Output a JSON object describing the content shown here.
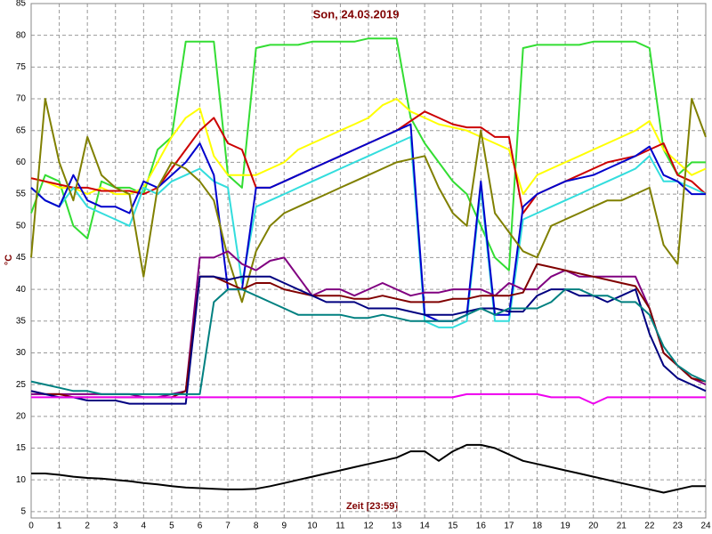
{
  "chart_data": {
    "type": "line",
    "title": "Son, 24.03.2019",
    "xlabel": "Zeit [23:59]",
    "ylabel": "°C",
    "x": [
      0,
      0.5,
      1,
      1.5,
      2,
      2.5,
      3,
      3.5,
      4,
      4.5,
      5,
      5.5,
      6,
      6.5,
      7,
      7.5,
      8,
      8.5,
      9,
      9.5,
      10,
      10.5,
      11,
      11.5,
      12,
      12.5,
      13,
      13.5,
      14,
      14.5,
      15,
      15.5,
      16,
      16.5,
      17,
      17.5,
      18,
      18.5,
      19,
      19.5,
      20,
      20.5,
      21,
      21.5,
      22,
      22.5,
      23,
      23.5,
      24
    ],
    "xlim": [
      0,
      24
    ],
    "xticks": [
      0,
      1,
      2,
      3,
      4,
      5,
      6,
      7,
      8,
      9,
      10,
      11,
      12,
      13,
      14,
      15,
      16,
      17,
      18,
      19,
      20,
      21,
      22,
      23,
      24
    ],
    "ylim": [
      4,
      85
    ],
    "yticks": [
      5,
      10,
      15,
      20,
      25,
      30,
      35,
      40,
      45,
      50,
      55,
      60,
      65,
      70,
      75,
      80,
      85
    ],
    "grid": true,
    "series": [
      {
        "color": "#33dd33",
        "values": [
          52,
          58,
          57,
          50,
          48,
          57,
          56,
          56,
          55,
          62,
          64,
          79,
          79,
          79,
          58,
          56,
          78,
          78.5,
          78.5,
          78.5,
          79,
          79,
          79,
          79,
          79.5,
          79.5,
          79.5,
          67,
          63,
          60,
          57,
          55,
          50,
          45,
          43,
          78,
          78.5,
          78.5,
          78.5,
          78.5,
          79,
          79,
          79,
          79,
          78,
          62,
          58,
          60,
          60
        ]
      },
      {
        "color": "#ffff00",
        "values": [
          57.5,
          57,
          56,
          56,
          55,
          56,
          55,
          55,
          56,
          60,
          64,
          67,
          68.5,
          61,
          58,
          58,
          58,
          59,
          60,
          62,
          63,
          64,
          65,
          66,
          67,
          69,
          70,
          68,
          67,
          66,
          65.5,
          65,
          64,
          63,
          62,
          55,
          58,
          59,
          60,
          61,
          62,
          63,
          64,
          65,
          66.5,
          62,
          60,
          58,
          59
        ]
      },
      {
        "color": "#cc0000",
        "values": [
          57.5,
          57,
          56.5,
          56,
          56,
          55.5,
          55.5,
          55.5,
          55,
          56,
          59,
          62,
          65,
          67,
          63,
          62,
          56,
          56,
          57,
          58,
          59,
          60,
          61,
          62,
          63,
          64,
          65,
          66.5,
          68,
          67,
          66,
          65.5,
          65.5,
          64,
          64,
          52,
          55,
          56,
          57,
          58,
          59,
          60,
          60.5,
          61,
          62,
          63,
          58,
          57,
          55
        ]
      },
      {
        "color": "#33dddd",
        "values": [
          56,
          54,
          53,
          56,
          53,
          52,
          51,
          50,
          56,
          55,
          57,
          58,
          59,
          57,
          56,
          41,
          53,
          54,
          55,
          56,
          57,
          58,
          59,
          60,
          61,
          62,
          63,
          64,
          35,
          34,
          34,
          35,
          56,
          35,
          35,
          51,
          52,
          53,
          54,
          55,
          56,
          57,
          58,
          59,
          61,
          57,
          57,
          56,
          55
        ]
      },
      {
        "color": "#0000cc",
        "values": [
          56,
          54,
          53,
          58,
          54,
          53,
          53,
          52,
          57,
          56,
          58,
          60,
          63,
          58,
          40,
          40,
          56,
          56,
          57,
          58,
          59,
          60,
          61,
          62,
          63,
          64,
          65,
          66,
          36,
          35,
          35,
          36,
          57,
          36,
          36,
          53,
          55,
          56,
          57,
          57.5,
          58,
          59,
          60,
          61,
          62.5,
          58,
          57,
          55,
          55
        ]
      },
      {
        "color": "#808000",
        "values": [
          45,
          70,
          60,
          54,
          64,
          58,
          56,
          55,
          42,
          56,
          60,
          59,
          57,
          54,
          45,
          38,
          46,
          50,
          52,
          53,
          54,
          55,
          56,
          57,
          58,
          59,
          60,
          60.5,
          61,
          56,
          52,
          50,
          65,
          52,
          49,
          46,
          45,
          50,
          51,
          52,
          53,
          54,
          54,
          55,
          56,
          47,
          44,
          70,
          64
        ]
      },
      {
        "color": "#800080",
        "values": [
          23.5,
          23.5,
          23.5,
          23.5,
          23.5,
          23.5,
          23.5,
          23.5,
          23,
          23,
          23.5,
          24,
          45,
          45,
          46,
          44,
          43,
          44.5,
          45,
          42,
          39,
          40,
          40,
          39,
          40,
          41,
          40,
          39,
          39.5,
          39.5,
          40,
          40,
          40,
          39,
          41,
          40,
          40,
          42,
          43,
          42,
          42,
          42,
          42,
          42,
          37,
          30,
          28,
          26,
          25
        ]
      },
      {
        "color": "#800000",
        "values": [
          24,
          23.5,
          23.5,
          23,
          23,
          23,
          23,
          23,
          23,
          23,
          23,
          24,
          42,
          42,
          41,
          40,
          41,
          41,
          40,
          39.5,
          39,
          39,
          39,
          38.5,
          38.5,
          39,
          38.5,
          38,
          38,
          38,
          38.5,
          38.5,
          39,
          39,
          39,
          39.5,
          44,
          43.5,
          43,
          42.5,
          42,
          41.5,
          41,
          40.5,
          37,
          30,
          28,
          26,
          25.5
        ]
      },
      {
        "color": "#000080",
        "values": [
          24,
          23.5,
          23,
          23,
          22.5,
          22.5,
          22.5,
          22,
          22,
          22,
          22,
          22,
          42,
          42,
          41.5,
          42,
          42,
          42,
          41,
          40,
          39,
          38,
          38,
          38,
          37,
          37,
          37,
          36.5,
          36,
          36,
          36,
          36.5,
          37,
          37,
          36.5,
          36.5,
          39,
          40,
          40,
          39,
          39,
          38,
          39,
          40,
          33,
          28,
          26,
          25,
          24
        ]
      },
      {
        "color": "#008080",
        "values": [
          25.5,
          25,
          24.5,
          24,
          24,
          23.5,
          23.5,
          23.5,
          23.5,
          23.5,
          23.5,
          23.5,
          23.5,
          38,
          40,
          40,
          39,
          38,
          37,
          36,
          36,
          36,
          36,
          35.5,
          35.5,
          36,
          35.5,
          35,
          35,
          35,
          35,
          36,
          37,
          36,
          37,
          37,
          37,
          38,
          40,
          40,
          39,
          39,
          38,
          38,
          36,
          31,
          28,
          26.5,
          25.5
        ]
      },
      {
        "color": "#ee00ee",
        "values": [
          23,
          23,
          23,
          23,
          23,
          23,
          23,
          23,
          23,
          23,
          23,
          23,
          23,
          23,
          23,
          23,
          23,
          23,
          23,
          23,
          23,
          23,
          23,
          23,
          23,
          23,
          23,
          23,
          23,
          23,
          23,
          23.5,
          23.5,
          23.5,
          23.5,
          23.5,
          23.5,
          23,
          23,
          23,
          22,
          23,
          23,
          23,
          23,
          23,
          23,
          23,
          23
        ]
      },
      {
        "color": "#000000",
        "values": [
          11,
          11,
          10.8,
          10.5,
          10.3,
          10.2,
          10,
          9.8,
          9.5,
          9.3,
          9,
          8.8,
          8.7,
          8.6,
          8.5,
          8.5,
          8.6,
          9,
          9.5,
          10,
          10.5,
          11,
          11.5,
          12,
          12.5,
          13,
          13.5,
          14.5,
          14.5,
          13,
          14.5,
          15.5,
          15.5,
          15,
          14,
          13,
          12.5,
          12,
          11.5,
          11,
          10.5,
          10,
          9.5,
          9,
          8.5,
          8,
          8.5,
          9,
          9
        ]
      }
    ]
  }
}
